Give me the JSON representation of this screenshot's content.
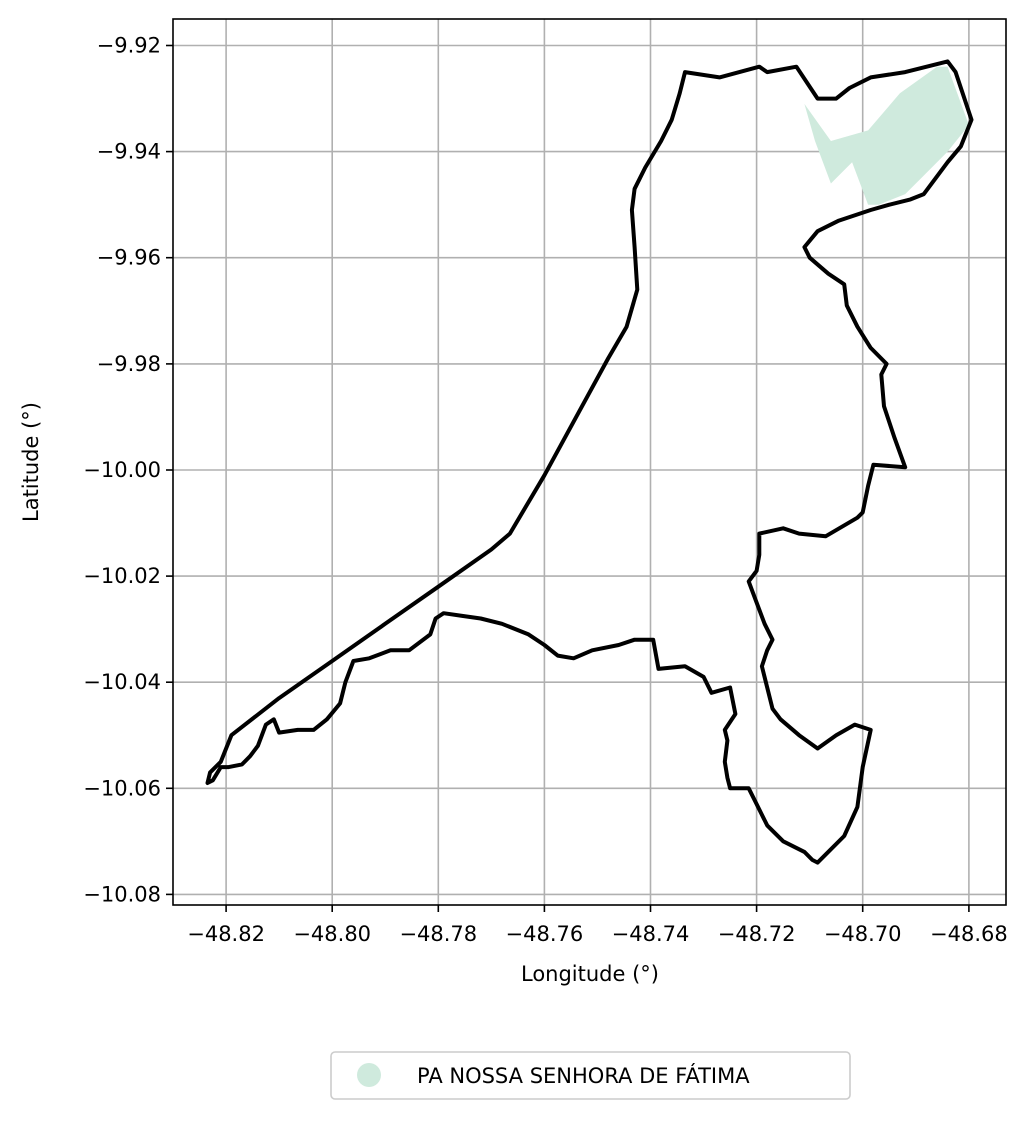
{
  "chart_data": {
    "type": "map",
    "xlabel": "Longitude (°)",
    "ylabel": "Latitude (°)",
    "xlim": [
      -48.83,
      -48.673
    ],
    "ylim": [
      -10.082,
      -9.915
    ],
    "x_ticks": [
      -48.82,
      -48.8,
      -48.78,
      -48.76,
      -48.74,
      -48.72,
      -48.7,
      -48.68
    ],
    "x_tick_labels": [
      "−48.82",
      "−48.80",
      "−48.78",
      "−48.76",
      "−48.74",
      "−48.72",
      "−48.70",
      "−48.68"
    ],
    "y_ticks": [
      -9.92,
      -9.94,
      -9.96,
      -9.98,
      -10.0,
      -10.02,
      -10.04,
      -10.06,
      -10.08
    ],
    "y_tick_labels": [
      "−9.92",
      "−9.94",
      "−9.96",
      "−9.98",
      "−10.00",
      "−10.02",
      "−10.04",
      "−10.06",
      "−10.08"
    ],
    "grid": true,
    "legend_position": "bottom-center",
    "legend": [
      {
        "label": "PA NOSSA SENHORA DE FÁTIMA",
        "color": "#cfeadd"
      }
    ],
    "settlement_polygon": {
      "name": "PA NOSSA SENHORA DE FÁTIMA",
      "color": "#cfeadd",
      "coords": [
        [
          -48.711,
          -9.931
        ],
        [
          -48.706,
          -9.938
        ],
        [
          -48.699,
          -9.936
        ],
        [
          -48.693,
          -9.929
        ],
        [
          -48.686,
          -9.924
        ],
        [
          -48.684,
          -9.924
        ],
        [
          -48.68,
          -9.935
        ],
        [
          -48.684,
          -9.94
        ],
        [
          -48.689,
          -9.945
        ],
        [
          -48.692,
          -9.948
        ],
        [
          -48.697,
          -9.95
        ],
        [
          -48.699,
          -9.95
        ],
        [
          -48.702,
          -9.942
        ],
        [
          -48.706,
          -9.946
        ],
        [
          -48.709,
          -9.938
        ]
      ]
    },
    "municipality_outline": {
      "color": "#000000",
      "coords": [
        [
          -48.7335,
          -9.925
        ],
        [
          -48.727,
          -9.926
        ],
        [
          -48.7195,
          -9.924
        ],
        [
          -48.718,
          -9.925
        ],
        [
          -48.7125,
          -9.924
        ],
        [
          -48.7085,
          -9.93
        ],
        [
          -48.705,
          -9.93
        ],
        [
          -48.7025,
          -9.928
        ],
        [
          -48.6985,
          -9.926
        ],
        [
          -48.692,
          -9.925
        ],
        [
          -48.684,
          -9.923
        ],
        [
          -48.6825,
          -9.925
        ],
        [
          -48.6795,
          -9.934
        ],
        [
          -48.6815,
          -9.939
        ],
        [
          -48.684,
          -9.942
        ],
        [
          -48.6885,
          -9.948
        ],
        [
          -48.691,
          -9.949
        ],
        [
          -48.695,
          -9.95
        ],
        [
          -48.6985,
          -9.951
        ],
        [
          -48.7045,
          -9.953
        ],
        [
          -48.7085,
          -9.955
        ],
        [
          -48.711,
          -9.958
        ],
        [
          -48.71,
          -9.96
        ],
        [
          -48.7065,
          -9.963
        ],
        [
          -48.7035,
          -9.965
        ],
        [
          -48.703,
          -9.969
        ],
        [
          -48.701,
          -9.973
        ],
        [
          -48.6985,
          -9.977
        ],
        [
          -48.6955,
          -9.98
        ],
        [
          -48.6965,
          -9.982
        ],
        [
          -48.696,
          -9.988
        ],
        [
          -48.694,
          -9.994
        ],
        [
          -48.692,
          -9.9995
        ],
        [
          -48.698,
          -9.999
        ],
        [
          -48.699,
          -10.003
        ],
        [
          -48.7,
          -10.008
        ],
        [
          -48.701,
          -10.009
        ],
        [
          -48.707,
          -10.0125
        ],
        [
          -48.712,
          -10.012
        ],
        [
          -48.715,
          -10.011
        ],
        [
          -48.7195,
          -10.012
        ],
        [
          -48.7195,
          -10.016
        ],
        [
          -48.72,
          -10.019
        ],
        [
          -48.7215,
          -10.021
        ],
        [
          -48.72,
          -10.025
        ],
        [
          -48.7185,
          -10.029
        ],
        [
          -48.717,
          -10.032
        ],
        [
          -48.718,
          -10.034
        ],
        [
          -48.719,
          -10.037
        ],
        [
          -48.718,
          -10.041
        ],
        [
          -48.717,
          -10.045
        ],
        [
          -48.7155,
          -10.047
        ],
        [
          -48.712,
          -10.05
        ],
        [
          -48.7085,
          -10.0525
        ],
        [
          -48.705,
          -10.05
        ],
        [
          -48.7015,
          -10.048
        ],
        [
          -48.6985,
          -10.049
        ],
        [
          -48.7,
          -10.056
        ],
        [
          -48.701,
          -10.0635
        ],
        [
          -48.7035,
          -10.069
        ],
        [
          -48.7085,
          -10.074
        ],
        [
          -48.7095,
          -10.0735
        ],
        [
          -48.711,
          -10.072
        ],
        [
          -48.715,
          -10.07
        ],
        [
          -48.718,
          -10.067
        ],
        [
          -48.7195,
          -10.064
        ],
        [
          -48.7205,
          -10.062
        ],
        [
          -48.7215,
          -10.06
        ],
        [
          -48.725,
          -10.06
        ],
        [
          -48.7255,
          -10.058
        ],
        [
          -48.726,
          -10.055
        ],
        [
          -48.7255,
          -10.051
        ],
        [
          -48.726,
          -10.049
        ],
        [
          -48.724,
          -10.046
        ],
        [
          -48.725,
          -10.041
        ],
        [
          -48.7285,
          -10.042
        ],
        [
          -48.73,
          -10.039
        ],
        [
          -48.7335,
          -10.037
        ],
        [
          -48.7385,
          -10.0375
        ],
        [
          -48.7395,
          -10.032
        ],
        [
          -48.743,
          -10.032
        ],
        [
          -48.746,
          -10.033
        ],
        [
          -48.751,
          -10.034
        ],
        [
          -48.7545,
          -10.0355
        ],
        [
          -48.7575,
          -10.035
        ],
        [
          -48.76,
          -10.033
        ],
        [
          -48.763,
          -10.031
        ],
        [
          -48.768,
          -10.029
        ],
        [
          -48.772,
          -10.028
        ],
        [
          -48.7755,
          -10.0275
        ],
        [
          -48.779,
          -10.027
        ],
        [
          -48.7805,
          -10.028
        ],
        [
          -48.7815,
          -10.031
        ],
        [
          -48.7855,
          -10.034
        ],
        [
          -48.789,
          -10.034
        ],
        [
          -48.793,
          -10.0355
        ],
        [
          -48.796,
          -10.036
        ],
        [
          -48.7975,
          -10.04
        ],
        [
          -48.7985,
          -10.044
        ],
        [
          -48.801,
          -10.047
        ],
        [
          -48.8035,
          -10.049
        ],
        [
          -48.8065,
          -10.049
        ],
        [
          -48.81,
          -10.0495
        ],
        [
          -48.811,
          -10.047
        ],
        [
          -48.8125,
          -10.048
        ],
        [
          -48.814,
          -10.052
        ],
        [
          -48.8155,
          -10.054
        ],
        [
          -48.817,
          -10.0555
        ],
        [
          -48.8195,
          -10.056
        ],
        [
          -48.821,
          -10.056
        ],
        [
          -48.8225,
          -10.0585
        ],
        [
          -48.8235,
          -10.059
        ],
        [
          -48.823,
          -10.057
        ],
        [
          -48.821,
          -10.055
        ],
        [
          -48.819,
          -10.05
        ],
        [
          -48.81,
          -10.043
        ],
        [
          -48.8,
          -10.036
        ],
        [
          -48.79,
          -10.029
        ],
        [
          -48.78,
          -10.022
        ],
        [
          -48.77,
          -10.015
        ],
        [
          -48.7665,
          -10.012
        ],
        [
          -48.76,
          -10.001
        ],
        [
          -48.754,
          -9.99
        ],
        [
          -48.748,
          -9.979
        ],
        [
          -48.7445,
          -9.973
        ],
        [
          -48.7425,
          -9.966
        ],
        [
          -48.743,
          -9.958
        ],
        [
          -48.7435,
          -9.951
        ],
        [
          -48.743,
          -9.947
        ],
        [
          -48.741,
          -9.943
        ],
        [
          -48.738,
          -9.938
        ],
        [
          -48.736,
          -9.934
        ],
        [
          -48.7345,
          -9.929
        ]
      ]
    }
  }
}
